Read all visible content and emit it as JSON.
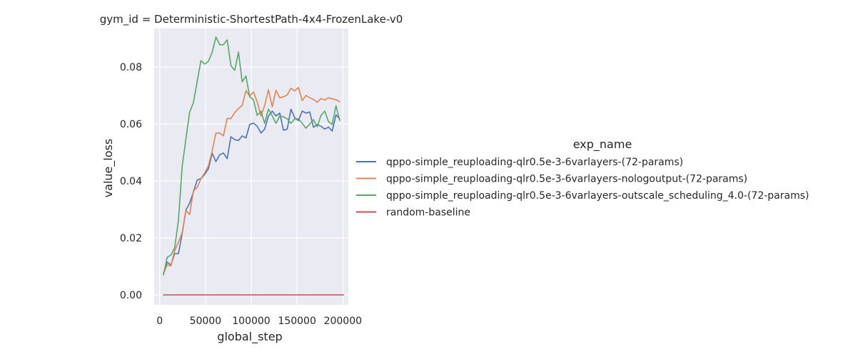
{
  "chart_data": {
    "type": "line",
    "title": "gym_id = Deterministic-ShortestPath-4x4-FrozenLake-v0",
    "xlabel": "global_step",
    "ylabel": "value_loss",
    "xlim": [
      -6000,
      206000
    ],
    "ylim": [
      -0.0035,
      0.0935
    ],
    "x_ticks": [
      0,
      50000,
      100000,
      150000,
      200000
    ],
    "x_tick_labels": [
      "0",
      "50000",
      "100000",
      "150000",
      "200000"
    ],
    "y_ticks": [
      0.0,
      0.02,
      0.04,
      0.06,
      0.08
    ],
    "y_tick_labels": [
      "0.00",
      "0.02",
      "0.04",
      "0.06",
      "0.08"
    ],
    "grid": true,
    "background": "#eaeaf2",
    "legend": {
      "title": "exp_name",
      "position": "right"
    },
    "x": [
      4096,
      8192,
      12288,
      16384,
      20480,
      24576,
      28672,
      32768,
      36864,
      40960,
      45056,
      49152,
      53248,
      57344,
      61440,
      65536,
      69632,
      73728,
      77824,
      81920,
      86016,
      90112,
      94208,
      98304,
      102400,
      106496,
      110592,
      114688,
      118784,
      122880,
      126976,
      131072,
      135168,
      139264,
      143360,
      147456,
      151552,
      155648,
      159744,
      163840,
      167936,
      172032,
      176128,
      180224,
      184320,
      188416,
      192512,
      196608,
      200704
    ],
    "series": [
      {
        "name": "qppo-simple_reuploading-qlr0.5e-3-6varlayers-(72-params)",
        "color": "#4c72b0",
        "values": [
          0.0075,
          0.0115,
          0.0105,
          0.0145,
          0.0145,
          0.0215,
          0.0298,
          0.0322,
          0.0362,
          0.0403,
          0.0408,
          0.0423,
          0.0443,
          0.0497,
          0.0468,
          0.0492,
          0.0498,
          0.0478,
          0.0555,
          0.0545,
          0.0542,
          0.0558,
          0.0551,
          0.0598,
          0.0603,
          0.0592,
          0.0568,
          0.0582,
          0.0628,
          0.0645,
          0.0628,
          0.0638,
          0.0578,
          0.0582,
          0.0652,
          0.0621,
          0.0612,
          0.0645,
          0.0638,
          0.0642,
          0.0588,
          0.0598,
          0.0592,
          0.0582,
          0.0589,
          0.0575,
          0.0632,
          0.0618,
          null
        ]
      },
      {
        "name": "qppo-simple_reuploading-qlr0.5e-3-6varlayers-nologoutput-(72-params)",
        "color": "#dd8452",
        "values": [
          0.0075,
          0.0105,
          0.0102,
          0.0155,
          0.0185,
          0.0218,
          0.0296,
          0.0282,
          0.0365,
          0.0377,
          0.0408,
          0.0428,
          0.0453,
          0.0505,
          0.0568,
          0.0568,
          0.0558,
          0.0619,
          0.0619,
          0.064,
          0.0654,
          0.0665,
          0.0717,
          0.0698,
          0.0712,
          0.0678,
          0.0628,
          0.0665,
          0.072,
          0.066,
          0.0718,
          0.0692,
          0.0695,
          0.0702,
          0.0725,
          0.0716,
          0.0728,
          0.0682,
          0.07,
          0.0692,
          0.0686,
          0.0676,
          0.0689,
          0.0684,
          0.0692,
          0.0688,
          0.0685,
          0.0678,
          null
        ]
      },
      {
        "name": "qppo-simple_reuploading-qlr0.5e-3-6varlayers-outscale_scheduling_4.0-(72-params)",
        "color": "#55a868",
        "values": [
          0.007,
          0.0132,
          0.014,
          0.0165,
          0.0262,
          0.045,
          0.0548,
          0.0642,
          0.0675,
          0.075,
          0.0822,
          0.081,
          0.082,
          0.0852,
          0.0905,
          0.0878,
          0.0878,
          0.0895,
          0.0805,
          0.0788,
          0.0852,
          0.0748,
          0.0768,
          0.0695,
          0.0685,
          0.063,
          0.0645,
          0.0602,
          0.0652,
          0.0628,
          0.0602,
          0.0628,
          0.0625,
          0.0618,
          0.0602,
          0.0618,
          0.0618,
          0.0602,
          0.0585,
          0.06,
          0.0615,
          0.059,
          0.063,
          0.0645,
          0.0608,
          0.0598,
          0.0664,
          0.0612,
          null
        ]
      },
      {
        "name": "random-baseline",
        "color": "#c44e52",
        "values": [
          0.0,
          0.0,
          0.0,
          0.0,
          0.0,
          0.0,
          0.0,
          0.0,
          0.0,
          0.0,
          0.0,
          0.0,
          0.0,
          0.0,
          0.0,
          0.0,
          0.0,
          0.0,
          0.0,
          0.0,
          0.0,
          0.0,
          0.0,
          0.0,
          0.0,
          0.0,
          0.0,
          0.0,
          0.0,
          0.0,
          0.0,
          0.0,
          0.0,
          0.0,
          0.0,
          0.0,
          0.0,
          0.0,
          0.0,
          0.0,
          0.0,
          0.0,
          0.0,
          0.0,
          0.0,
          0.0,
          0.0,
          0.0,
          0.0
        ]
      }
    ]
  }
}
